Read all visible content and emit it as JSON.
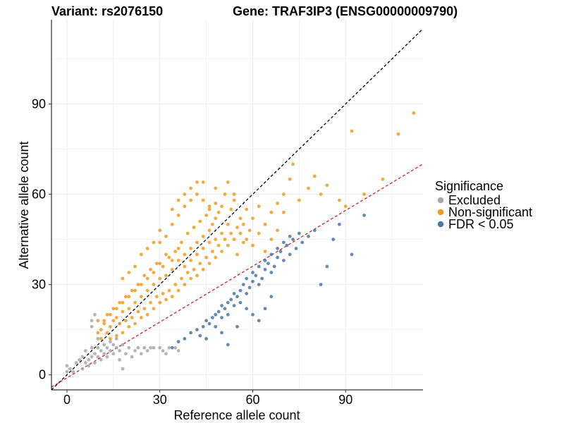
{
  "chart_data": {
    "type": "scatter",
    "title_left": "Variant: rs2076150",
    "title_right": "Gene: TRAF3IP3 (ENSG00000009790)",
    "xlabel": "Reference allele count",
    "ylabel": "Alternative allele count",
    "xlim": [
      -5,
      115
    ],
    "ylim": [
      -5,
      118
    ],
    "xticks": [
      0,
      30,
      60,
      90
    ],
    "yticks": [
      0,
      30,
      60,
      90
    ],
    "grid": true,
    "legend": {
      "title": "Significance",
      "placement": "right",
      "entries": [
        {
          "label": "Excluded",
          "color": "#a8a8a8"
        },
        {
          "label": "Non-significant",
          "color": "#f59a1c"
        },
        {
          "label": "FDR < 0.05",
          "color": "#4a76a8"
        }
      ]
    },
    "reference_lines": [
      {
        "name": "identity",
        "slope": 1.0,
        "intercept": 0,
        "color": "#000000",
        "style": "dashed"
      },
      {
        "name": "fit",
        "slope": 0.618,
        "intercept": -1.0,
        "color": "#e41a1c",
        "style": "dashed"
      }
    ],
    "series": [
      {
        "name": "Excluded",
        "color": "#a8a8a8",
        "points": [
          [
            0,
            1
          ],
          [
            0,
            3
          ],
          [
            1,
            2
          ],
          [
            2,
            1
          ],
          [
            3,
            4
          ],
          [
            4,
            5
          ],
          [
            5,
            2
          ],
          [
            5,
            6
          ],
          [
            6,
            4
          ],
          [
            6,
            8
          ],
          [
            7,
            3
          ],
          [
            7,
            5
          ],
          [
            8,
            6
          ],
          [
            8,
            9
          ],
          [
            9,
            4
          ],
          [
            9,
            7
          ],
          [
            10,
            6
          ],
          [
            10,
            9
          ],
          [
            10,
            12
          ],
          [
            11,
            5
          ],
          [
            11,
            8
          ],
          [
            12,
            7
          ],
          [
            12,
            10
          ],
          [
            13,
            6
          ],
          [
            13,
            9
          ],
          [
            14,
            8
          ],
          [
            14,
            11
          ],
          [
            15,
            7
          ],
          [
            15,
            10
          ],
          [
            16,
            9
          ],
          [
            16,
            12
          ],
          [
            17,
            5
          ],
          [
            17,
            8
          ],
          [
            18,
            10
          ],
          [
            18,
            2
          ],
          [
            19,
            7
          ],
          [
            20,
            9
          ],
          [
            21,
            6
          ],
          [
            22,
            8
          ],
          [
            23,
            9
          ],
          [
            24,
            7
          ],
          [
            25,
            9
          ],
          [
            26,
            8
          ],
          [
            27,
            9
          ],
          [
            28,
            9
          ],
          [
            30,
            9
          ],
          [
            31,
            8
          ],
          [
            32,
            7
          ],
          [
            33,
            9
          ],
          [
            35,
            9
          ],
          [
            36,
            8
          ],
          [
            8,
            18
          ],
          [
            9,
            20
          ],
          [
            8,
            16
          ]
        ]
      },
      {
        "name": "Non-significant",
        "color": "#f59a1c",
        "points": [
          [
            10,
            14
          ],
          [
            10,
            18
          ],
          [
            11,
            12
          ],
          [
            11,
            15
          ],
          [
            12,
            17
          ],
          [
            13,
            14
          ],
          [
            13,
            20
          ],
          [
            14,
            12
          ],
          [
            14,
            16
          ],
          [
            15,
            18
          ],
          [
            15,
            22
          ],
          [
            16,
            13
          ],
          [
            16,
            19
          ],
          [
            17,
            17
          ],
          [
            17,
            24
          ],
          [
            18,
            14
          ],
          [
            18,
            21
          ],
          [
            19,
            18
          ],
          [
            19,
            26
          ],
          [
            20,
            16
          ],
          [
            20,
            22
          ],
          [
            21,
            19
          ],
          [
            21,
            28
          ],
          [
            22,
            17
          ],
          [
            22,
            24
          ],
          [
            23,
            21
          ],
          [
            23,
            30
          ],
          [
            24,
            19
          ],
          [
            24,
            26
          ],
          [
            25,
            22
          ],
          [
            25,
            33
          ],
          [
            26,
            20
          ],
          [
            26,
            28
          ],
          [
            27,
            24
          ],
          [
            27,
            35
          ],
          [
            28,
            22
          ],
          [
            28,
            30
          ],
          [
            29,
            26
          ],
          [
            29,
            37
          ],
          [
            30,
            24
          ],
          [
            30,
            32
          ],
          [
            30,
            44
          ],
          [
            31,
            27
          ],
          [
            31,
            36
          ],
          [
            32,
            25
          ],
          [
            32,
            33
          ],
          [
            32,
            46
          ],
          [
            33,
            28
          ],
          [
            33,
            39
          ],
          [
            34,
            26
          ],
          [
            34,
            35
          ],
          [
            34,
            50
          ],
          [
            35,
            30
          ],
          [
            35,
            41
          ],
          [
            36,
            28
          ],
          [
            36,
            38
          ],
          [
            36,
            53
          ],
          [
            37,
            32
          ],
          [
            37,
            44
          ],
          [
            38,
            30
          ],
          [
            38,
            40
          ],
          [
            38,
            56
          ],
          [
            39,
            34
          ],
          [
            39,
            47
          ],
          [
            40,
            32
          ],
          [
            40,
            42
          ],
          [
            40,
            58
          ],
          [
            41,
            35
          ],
          [
            41,
            49
          ],
          [
            42,
            33
          ],
          [
            42,
            44
          ],
          [
            42,
            60
          ],
          [
            43,
            37
          ],
          [
            43,
            51
          ],
          [
            44,
            35
          ],
          [
            44,
            46
          ],
          [
            44,
            64
          ],
          [
            45,
            39
          ],
          [
            45,
            53
          ],
          [
            46,
            37
          ],
          [
            46,
            48
          ],
          [
            46,
            55
          ],
          [
            47,
            41
          ],
          [
            47,
            50
          ],
          [
            48,
            39
          ],
          [
            48,
            52
          ],
          [
            48,
            62
          ],
          [
            49,
            43
          ],
          [
            49,
            54
          ],
          [
            50,
            41
          ],
          [
            50,
            56
          ],
          [
            51,
            45
          ],
          [
            51,
            60
          ],
          [
            52,
            43
          ],
          [
            52,
            50
          ],
          [
            53,
            47
          ],
          [
            53,
            55
          ],
          [
            54,
            45
          ],
          [
            54,
            58
          ],
          [
            55,
            49
          ],
          [
            55,
            40
          ],
          [
            56,
            47
          ],
          [
            56,
            52
          ],
          [
            57,
            50
          ],
          [
            57,
            44
          ],
          [
            58,
            45
          ],
          [
            58,
            55
          ],
          [
            59,
            48
          ],
          [
            60,
            52
          ],
          [
            60,
            43
          ],
          [
            62,
            56
          ],
          [
            62,
            47
          ],
          [
            64,
            50
          ],
          [
            64,
            41
          ],
          [
            66,
            54
          ],
          [
            66,
            45
          ],
          [
            68,
            57
          ],
          [
            68,
            48
          ],
          [
            70,
            54
          ],
          [
            70,
            60
          ],
          [
            72,
            65
          ],
          [
            73,
            70
          ],
          [
            75,
            58
          ],
          [
            78,
            62
          ],
          [
            80,
            66
          ],
          [
            82,
            60
          ],
          [
            84,
            63
          ],
          [
            88,
            58
          ],
          [
            90,
            56
          ],
          [
            92,
            81
          ],
          [
            96,
            60
          ],
          [
            102,
            65
          ],
          [
            107,
            80
          ],
          [
            112,
            87
          ],
          [
            26,
            42
          ],
          [
            28,
            44
          ],
          [
            22,
            36
          ],
          [
            20,
            34
          ],
          [
            18,
            32
          ],
          [
            24,
            40
          ],
          [
            30,
            48
          ],
          [
            34,
            55
          ],
          [
            36,
            58
          ],
          [
            38,
            60
          ],
          [
            40,
            62
          ],
          [
            42,
            64
          ],
          [
            44,
            58
          ],
          [
            46,
            56
          ],
          [
            52,
            64
          ],
          [
            54,
            60
          ],
          [
            48,
            57
          ],
          [
            36,
            42
          ],
          [
            38,
            36
          ],
          [
            40,
            38
          ],
          [
            42,
            40
          ],
          [
            44,
            42
          ],
          [
            46,
            44
          ],
          [
            48,
            45
          ],
          [
            50,
            47
          ],
          [
            32,
            40
          ],
          [
            34,
            38
          ],
          [
            30,
            37
          ],
          [
            28,
            34
          ],
          [
            26,
            32
          ],
          [
            24,
            30
          ],
          [
            22,
            28
          ],
          [
            20,
            26
          ],
          [
            18,
            24
          ],
          [
            16,
            22
          ],
          [
            14,
            20
          ],
          [
            12,
            18
          ]
        ]
      },
      {
        "name": "FDR < 0.05",
        "color": "#4a76a8",
        "points": [
          [
            34,
            9
          ],
          [
            36,
            11
          ],
          [
            38,
            12
          ],
          [
            40,
            14
          ],
          [
            42,
            15
          ],
          [
            43,
            13
          ],
          [
            44,
            16
          ],
          [
            45,
            18
          ],
          [
            46,
            17
          ],
          [
            47,
            19
          ],
          [
            48,
            20
          ],
          [
            48,
            16
          ],
          [
            49,
            21
          ],
          [
            50,
            19
          ],
          [
            50,
            23
          ],
          [
            51,
            22
          ],
          [
            52,
            24
          ],
          [
            52,
            20
          ],
          [
            53,
            25
          ],
          [
            54,
            23
          ],
          [
            54,
            27
          ],
          [
            55,
            26
          ],
          [
            56,
            28
          ],
          [
            56,
            24
          ],
          [
            57,
            30
          ],
          [
            58,
            27
          ],
          [
            58,
            32
          ],
          [
            59,
            29
          ],
          [
            60,
            31
          ],
          [
            60,
            34
          ],
          [
            61,
            33
          ],
          [
            62,
            30
          ],
          [
            62,
            36
          ],
          [
            63,
            32
          ],
          [
            64,
            35
          ],
          [
            64,
            38
          ],
          [
            65,
            37
          ],
          [
            66,
            34
          ],
          [
            66,
            40
          ],
          [
            67,
            36
          ],
          [
            68,
            39
          ],
          [
            68,
            42
          ],
          [
            69,
            41
          ],
          [
            70,
            38
          ],
          [
            70,
            44
          ],
          [
            71,
            43
          ],
          [
            72,
            40
          ],
          [
            72,
            46
          ],
          [
            73,
            45
          ],
          [
            74,
            42
          ],
          [
            75,
            47
          ],
          [
            76,
            44
          ],
          [
            78,
            46
          ],
          [
            80,
            48
          ],
          [
            82,
            30
          ],
          [
            84,
            36
          ],
          [
            86,
            45
          ],
          [
            88,
            50
          ],
          [
            92,
            40
          ],
          [
            96,
            53
          ],
          [
            58,
            22
          ],
          [
            60,
            20
          ],
          [
            62,
            18
          ],
          [
            64,
            22
          ],
          [
            66,
            26
          ],
          [
            55,
            16
          ],
          [
            50,
            14
          ],
          [
            45,
            12
          ],
          [
            52,
            10
          ]
        ]
      }
    ]
  }
}
